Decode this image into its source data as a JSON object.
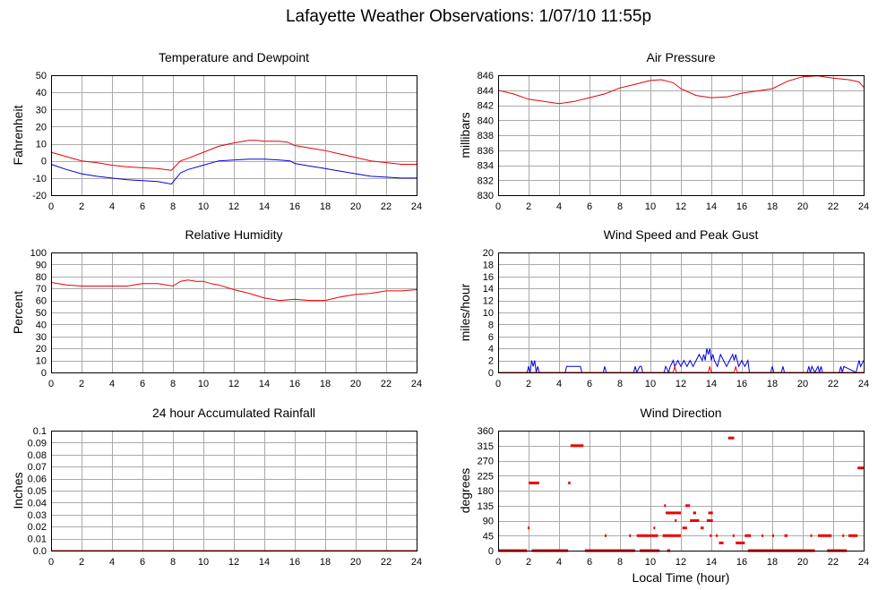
{
  "figure": {
    "title": "Lafayette Weather Observations: 1/07/10 11:55p",
    "xlabel": "Local Time (hour)"
  },
  "colors": {
    "red": "#ee0000",
    "blue": "#0000dd",
    "grid": "#aaaaaa",
    "axis": "#000000"
  },
  "chart_data": [
    {
      "id": "temperature",
      "type": "line",
      "title": "Temperature and Dewpoint",
      "xlabel": "",
      "ylabel": "Fahrenheit",
      "xlim": [
        0,
        24
      ],
      "ylim": [
        -20,
        50
      ],
      "xticks": [
        0,
        2,
        4,
        6,
        8,
        10,
        12,
        14,
        16,
        18,
        20,
        22,
        24
      ],
      "yticks": [
        -20,
        -10,
        0,
        10,
        20,
        30,
        40,
        50
      ],
      "grid": true,
      "series": [
        {
          "color": "red",
          "x": [
            0,
            1,
            2,
            3,
            4,
            5,
            6,
            7,
            7.9,
            8.5,
            9,
            10,
            11,
            12,
            13,
            13.5,
            14,
            15,
            15.5,
            16,
            17,
            18,
            19,
            20,
            21,
            22,
            23,
            24
          ],
          "y": [
            5,
            2.5,
            0,
            -1,
            -2.5,
            -3.5,
            -4,
            -4.5,
            -5.5,
            0,
            1.5,
            5,
            8.5,
            10.5,
            12,
            12,
            11.5,
            11.5,
            11,
            9,
            7.5,
            6,
            4,
            2,
            0,
            -1,
            -2,
            -2
          ]
        },
        {
          "color": "blue",
          "x": [
            0,
            1,
            2,
            3,
            4,
            5,
            6,
            7,
            7.9,
            8.5,
            9,
            10,
            11,
            12,
            13,
            14,
            15,
            15.7,
            16,
            17,
            18,
            19,
            20,
            21,
            22,
            23,
            24
          ],
          "y": [
            -2,
            -5,
            -7.5,
            -9,
            -10,
            -11,
            -11.5,
            -12,
            -13.5,
            -7,
            -5,
            -2.5,
            0,
            0.5,
            1,
            1,
            0.5,
            0,
            -1.5,
            -3,
            -4.5,
            -6,
            -7.5,
            -9,
            -9.5,
            -10,
            -10
          ]
        }
      ]
    },
    {
      "id": "pressure",
      "type": "line",
      "title": "Air Pressure",
      "xlabel": "",
      "ylabel": "millibars",
      "xlim": [
        0,
        24
      ],
      "ylim": [
        830,
        846
      ],
      "xticks": [
        0,
        2,
        4,
        6,
        8,
        10,
        12,
        14,
        16,
        18,
        20,
        22,
        24
      ],
      "yticks": [
        830,
        832,
        834,
        836,
        838,
        840,
        842,
        844,
        846
      ],
      "grid": true,
      "series": [
        {
          "color": "red",
          "x": [
            0,
            1,
            2,
            3,
            4,
            5,
            6,
            7,
            8,
            9,
            10,
            10.7,
            11.5,
            12,
            13,
            14,
            15,
            16,
            17,
            18,
            19,
            20,
            21,
            22,
            23,
            23.7,
            24
          ],
          "y": [
            844,
            843.5,
            842.8,
            842.5,
            842.2,
            842.5,
            843,
            843.5,
            844.3,
            844.8,
            845.3,
            845.4,
            845,
            844.2,
            843.3,
            843,
            843.1,
            843.6,
            843.9,
            844.2,
            845.2,
            845.8,
            845.9,
            845.6,
            845.4,
            845.1,
            844.4
          ]
        }
      ]
    },
    {
      "id": "humidity",
      "type": "line",
      "title": "Relative Humidity",
      "xlabel": "",
      "ylabel": "Percent",
      "xlim": [
        0,
        24
      ],
      "ylim": [
        0,
        100
      ],
      "xticks": [
        0,
        2,
        4,
        6,
        8,
        10,
        12,
        14,
        16,
        18,
        20,
        22,
        24
      ],
      "yticks": [
        0,
        10,
        20,
        30,
        40,
        50,
        60,
        70,
        80,
        90,
        100
      ],
      "grid": true,
      "series": [
        {
          "color": "red",
          "x": [
            0,
            1,
            2,
            3,
            4,
            5,
            6,
            7,
            8,
            8.5,
            9,
            9.5,
            10,
            10.5,
            11,
            11.5,
            12,
            13,
            14,
            15,
            16,
            17,
            18,
            19,
            20,
            21,
            22,
            23,
            24
          ],
          "y": [
            75,
            73,
            72,
            72,
            72,
            72,
            74,
            74,
            72,
            76,
            77,
            76,
            76,
            74,
            73,
            71,
            69,
            66,
            62,
            60,
            61,
            60,
            60,
            63,
            65,
            66,
            68,
            68,
            69
          ]
        }
      ]
    },
    {
      "id": "wind_speed",
      "type": "line",
      "title": "Wind Speed and Peak Gust",
      "xlabel": "",
      "ylabel": "miles/hour",
      "xlim": [
        0,
        24
      ],
      "ylim": [
        0,
        20
      ],
      "xticks": [
        0,
        2,
        4,
        6,
        8,
        10,
        12,
        14,
        16,
        18,
        20,
        22,
        24
      ],
      "yticks": [
        0,
        2,
        4,
        6,
        8,
        10,
        12,
        14,
        16,
        18,
        20
      ],
      "grid": true,
      "series": [
        {
          "color": "blue",
          "x": [
            0,
            1.9,
            2,
            2.1,
            2.2,
            2.3,
            2.4,
            2.5,
            2.6,
            2.7,
            2.8,
            4.4,
            4.5,
            4.6,
            4.7,
            5.4,
            5.5,
            6.9,
            7,
            7.1,
            8.9,
            9,
            9.1,
            9.3,
            9.4,
            9.5,
            10.9,
            11,
            11.2,
            11.3,
            11.5,
            11.6,
            11.8,
            12,
            12.2,
            12.4,
            12.6,
            12.8,
            13,
            13.2,
            13.4,
            13.5,
            13.6,
            13.7,
            13.8,
            13.9,
            14,
            14.1,
            14.2,
            14.4,
            14.6,
            14.8,
            15,
            15.2,
            15.4,
            15.5,
            15.6,
            15.8,
            16,
            16.2,
            16.4,
            16.5,
            17.9,
            18,
            18.1,
            18.6,
            18.7,
            18.8,
            20.3,
            20.4,
            20.5,
            20.6,
            20.8,
            21,
            21.1,
            21.2,
            21.3,
            22.4,
            22.5,
            22.6,
            22.7,
            23.5,
            23.6,
            23.7,
            23.8,
            24
          ],
          "y": [
            0,
            0,
            1,
            0,
            2,
            1,
            2,
            0,
            1,
            0,
            0,
            0,
            1,
            1,
            1,
            1,
            0,
            0,
            1,
            0,
            0,
            1,
            0,
            1,
            1,
            0,
            0,
            1,
            0,
            1,
            2,
            1,
            2,
            1,
            2,
            1,
            2,
            1,
            2,
            3,
            2,
            3,
            2,
            4,
            3,
            4,
            2,
            3,
            2,
            1,
            3,
            2,
            1,
            2,
            3,
            2,
            3,
            1,
            2,
            1,
            2,
            0,
            0,
            1,
            0,
            0,
            1,
            0,
            0,
            1,
            0,
            1,
            0,
            1,
            0,
            1,
            0,
            0,
            1,
            0,
            1,
            0,
            1,
            2,
            1,
            2
          ]
        },
        {
          "color": "red",
          "x": [
            0,
            11.5,
            11.6,
            11.7,
            13.8,
            13.9,
            14,
            15.5,
            15.6,
            15.7,
            24
          ],
          "y": [
            0,
            0,
            1,
            0,
            0,
            1,
            0,
            0,
            1,
            0,
            0
          ]
        }
      ]
    },
    {
      "id": "rainfall",
      "type": "line",
      "title": "24 hour Accumulated Rainfall",
      "xlabel": "",
      "ylabel": "Inches",
      "xlim": [
        0,
        24
      ],
      "ylim": [
        0,
        0.1
      ],
      "xticks": [
        0,
        2,
        4,
        6,
        8,
        10,
        12,
        14,
        16,
        18,
        20,
        22,
        24
      ],
      "yticks": [
        0.0,
        0.01,
        0.02,
        0.03,
        0.04,
        0.05,
        0.06,
        0.07,
        0.08,
        0.09,
        0.1
      ],
      "ytick_labels": [
        "0.0",
        "0.01",
        "0.02",
        "0.03",
        "0.04",
        "0.05",
        "0.06",
        "0.07",
        "0.08",
        "0.09",
        "0.1"
      ],
      "grid": true,
      "series": [
        {
          "color": "red",
          "x": [
            0,
            24
          ],
          "y": [
            0,
            0
          ]
        }
      ]
    },
    {
      "id": "wind_direction",
      "type": "scatter",
      "title": "Wind Direction",
      "xlabel": "Local Time (hour)",
      "ylabel": "degrees",
      "xlim": [
        0,
        24
      ],
      "ylim": [
        0,
        360
      ],
      "xticks": [
        0,
        2,
        4,
        6,
        8,
        10,
        12,
        14,
        16,
        18,
        20,
        22,
        24
      ],
      "yticks": [
        0,
        45,
        90,
        135,
        180,
        225,
        270,
        315,
        360
      ],
      "grid": true,
      "segments": [
        {
          "x1": 0,
          "x2": 1.9,
          "y": 0
        },
        {
          "x1": 1.95,
          "x2": 2.0,
          "y": 68
        },
        {
          "x1": 2.0,
          "x2": 2.7,
          "y": 203
        },
        {
          "x1": 2.2,
          "x2": 4.6,
          "y": 0
        },
        {
          "x1": 4.6,
          "x2": 4.75,
          "y": 203
        },
        {
          "x1": 4.75,
          "x2": 5.6,
          "y": 315
        },
        {
          "x1": 5.7,
          "x2": 6.0,
          "y": 0
        },
        {
          "x1": 6.0,
          "x2": 9.0,
          "y": 0
        },
        {
          "x1": 7.0,
          "x2": 7.1,
          "y": 45
        },
        {
          "x1": 8.6,
          "x2": 8.7,
          "y": 45
        },
        {
          "x1": 9.1,
          "x2": 10.5,
          "y": 45
        },
        {
          "x1": 9.3,
          "x2": 10.6,
          "y": 0
        },
        {
          "x1": 10.2,
          "x2": 10.3,
          "y": 68
        },
        {
          "x1": 10.8,
          "x2": 11.0,
          "y": 45
        },
        {
          "x1": 10.9,
          "x2": 11.0,
          "y": 135
        },
        {
          "x1": 11.0,
          "x2": 12.0,
          "y": 113
        },
        {
          "x1": 11.0,
          "x2": 12.0,
          "y": 45
        },
        {
          "x1": 11.1,
          "x2": 11.3,
          "y": 0
        },
        {
          "x1": 11.6,
          "x2": 11.7,
          "y": 90
        },
        {
          "x1": 12.1,
          "x2": 12.4,
          "y": 68
        },
        {
          "x1": 12.3,
          "x2": 12.6,
          "y": 135
        },
        {
          "x1": 12.6,
          "x2": 13.2,
          "y": 90
        },
        {
          "x1": 12.8,
          "x2": 13.0,
          "y": 113
        },
        {
          "x1": 13.3,
          "x2": 13.5,
          "y": 68
        },
        {
          "x1": 13.7,
          "x2": 14.1,
          "y": 90
        },
        {
          "x1": 13.8,
          "x2": 14.1,
          "y": 113
        },
        {
          "x1": 13.9,
          "x2": 14.0,
          "y": 45
        },
        {
          "x1": 14.5,
          "x2": 14.8,
          "y": 23
        },
        {
          "x1": 14.3,
          "x2": 14.4,
          "y": 45
        },
        {
          "x1": 15.1,
          "x2": 15.5,
          "y": 338
        },
        {
          "x1": 15.4,
          "x2": 15.5,
          "y": 45
        },
        {
          "x1": 15.6,
          "x2": 16.2,
          "y": 23
        },
        {
          "x1": 16.2,
          "x2": 16.6,
          "y": 45
        },
        {
          "x1": 16.4,
          "x2": 20.8,
          "y": 0
        },
        {
          "x1": 17.3,
          "x2": 17.4,
          "y": 45
        },
        {
          "x1": 18.0,
          "x2": 18.1,
          "y": 45
        },
        {
          "x1": 18.8,
          "x2": 19.0,
          "y": 45
        },
        {
          "x1": 20.5,
          "x2": 20.6,
          "y": 45
        },
        {
          "x1": 21.0,
          "x2": 21.9,
          "y": 45
        },
        {
          "x1": 21.6,
          "x2": 22.9,
          "y": 0
        },
        {
          "x1": 22.6,
          "x2": 22.7,
          "y": 45
        },
        {
          "x1": 23.0,
          "x2": 23.6,
          "y": 45
        },
        {
          "x1": 23.6,
          "x2": 24.0,
          "y": 248
        }
      ]
    }
  ]
}
